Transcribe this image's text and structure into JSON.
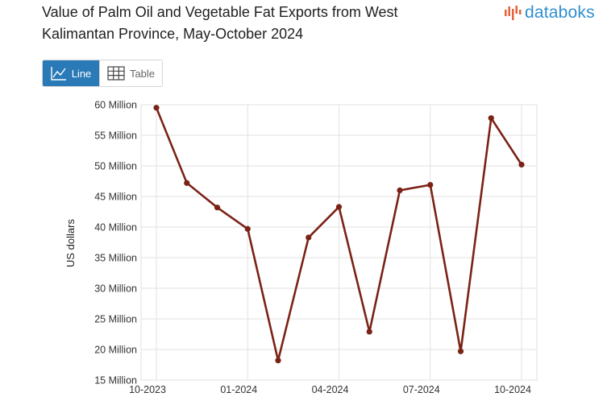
{
  "header": {
    "title": "Value of Palm Oil and Vegetable Fat Exports from West Kalimantan Province, May-October 2024",
    "brand": "databoks"
  },
  "view_toggle": {
    "line_label": "Line",
    "table_label": "Table",
    "selected": "Line"
  },
  "colors": {
    "series": "#7b2216",
    "accent": "#2a7ab8",
    "brand": "#2f8fd0",
    "brand_bars": "#e8603c"
  },
  "chart_data": {
    "type": "line",
    "title": "Value of Palm Oil and Vegetable Fat Exports from West Kalimantan Province, May-October 2024",
    "xlabel": "",
    "ylabel": "US dollars",
    "x": [
      "10-2023",
      "11-2023",
      "12-2023",
      "01-2024",
      "02-2024",
      "03-2024",
      "04-2024",
      "05-2024",
      "06-2024",
      "07-2024",
      "08-2024",
      "09-2024",
      "10-2024"
    ],
    "x_tick_labels": [
      "10-2023",
      "01-2024",
      "04-2024",
      "07-2024",
      "10-2024"
    ],
    "values": [
      59.5,
      47.2,
      43.2,
      39.7,
      18.2,
      38.3,
      43.3,
      22.9,
      46.0,
      46.9,
      19.7,
      57.8,
      50.2
    ],
    "unit": "Million US dollars",
    "y_tick_labels": [
      "15 Million",
      "20 Million",
      "25 Million",
      "30 Million",
      "35 Million",
      "40 Million",
      "45 Million",
      "50 Million",
      "55 Million",
      "60 Million"
    ],
    "ylim": [
      15,
      60
    ],
    "grid": true,
    "legend": "none"
  }
}
